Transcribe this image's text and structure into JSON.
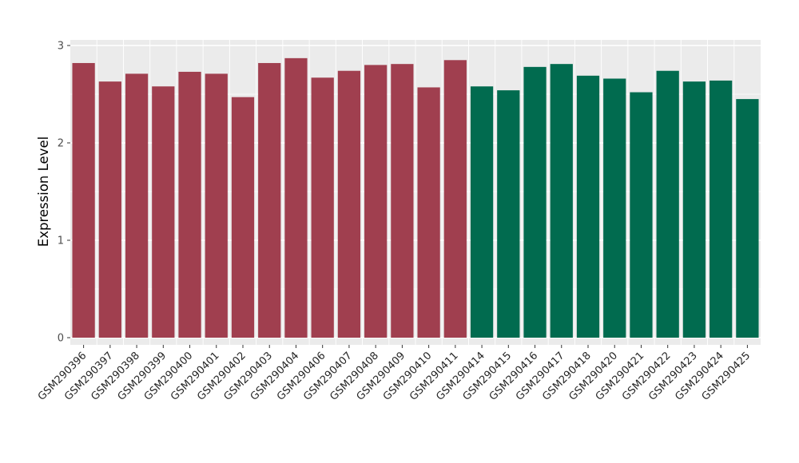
{
  "chart_data": {
    "type": "bar",
    "title": "",
    "xlabel": "",
    "ylabel": "Expression Level",
    "ylim": [
      0,
      3
    ],
    "yticks": [
      0,
      1,
      2,
      3
    ],
    "yticks_minor": [
      0.5,
      1.5,
      2.5
    ],
    "grid": true,
    "legend": "none",
    "panel_background": "#EBEBEB",
    "grid_color": "#FFFFFF",
    "axis_tick_color": "#333333",
    "axis_text_color": "#4D4D4D",
    "x_label_color": "#262626",
    "categories": [
      "GSM290396",
      "GSM290397",
      "GSM290398",
      "GSM290399",
      "GSM290400",
      "GSM290401",
      "GSM290402",
      "GSM290403",
      "GSM290404",
      "GSM290406",
      "GSM290407",
      "GSM290408",
      "GSM290409",
      "GSM290410",
      "GSM290411",
      "GSM290414",
      "GSM290415",
      "GSM290416",
      "GSM290417",
      "GSM290418",
      "GSM290420",
      "GSM290421",
      "GSM290422",
      "GSM290423",
      "GSM290424",
      "GSM290425"
    ],
    "values": [
      2.82,
      2.63,
      2.71,
      2.58,
      2.73,
      2.71,
      2.47,
      2.82,
      2.87,
      2.67,
      2.74,
      2.8,
      2.81,
      2.57,
      2.85,
      2.58,
      2.54,
      2.78,
      2.81,
      2.69,
      2.66,
      2.52,
      2.74,
      2.63,
      2.64,
      2.45
    ],
    "groups": [
      "group1",
      "group1",
      "group1",
      "group1",
      "group1",
      "group1",
      "group1",
      "group1",
      "group1",
      "group1",
      "group1",
      "group1",
      "group1",
      "group1",
      "group1",
      "group2",
      "group2",
      "group2",
      "group2",
      "group2",
      "group2",
      "group2",
      "group2",
      "group2",
      "group2",
      "group2"
    ],
    "group_colors": {
      "group1": "#A03F4F",
      "group2": "#016B4F"
    }
  }
}
